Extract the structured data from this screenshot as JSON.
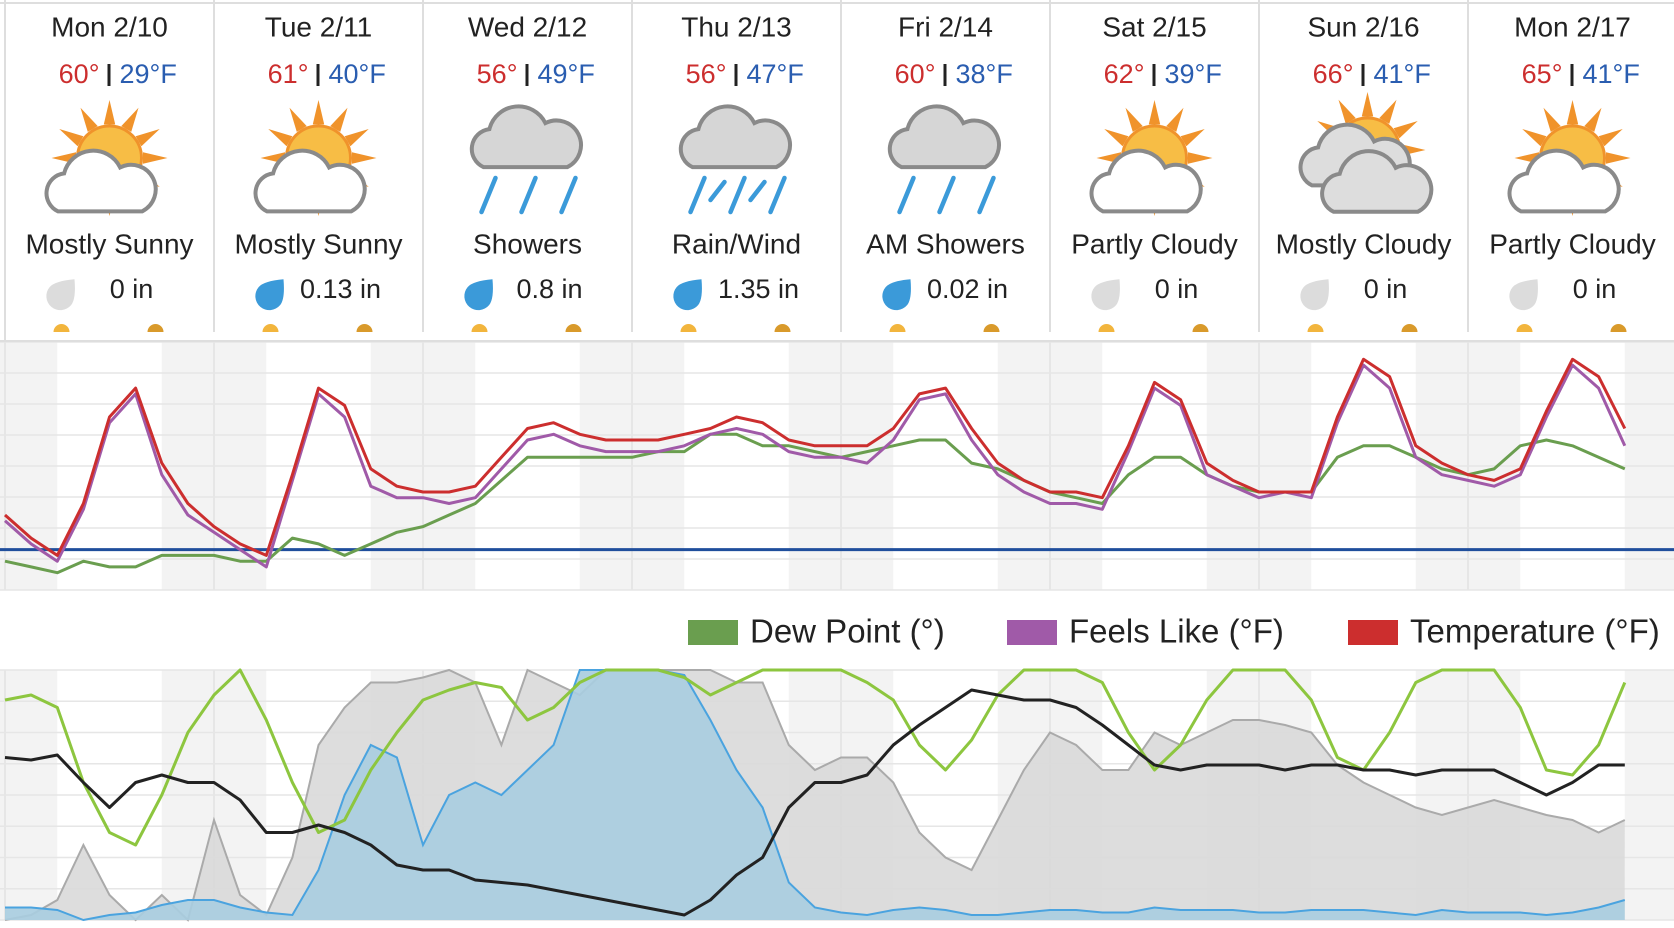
{
  "days": [
    {
      "date": "Mon 2/10",
      "high": "60°",
      "low": "29°F",
      "condition": "Mostly Sunny",
      "precip": "0 in"
    },
    {
      "date": "Tue 2/11",
      "high": "61°",
      "low": "40°F",
      "condition": "Mostly Sunny",
      "precip": "0.13 in"
    },
    {
      "date": "Wed 2/12",
      "high": "56°",
      "low": "49°F",
      "condition": "Showers",
      "precip": "0.8 in"
    },
    {
      "date": "Thu 2/13",
      "high": "56°",
      "low": "47°F",
      "condition": "Rain/Wind",
      "precip": "1.35 in"
    },
    {
      "date": "Fri 2/14",
      "high": "60°",
      "low": "38°F",
      "condition": "AM Showers",
      "precip": "0.02 in"
    },
    {
      "date": "Sat 2/15",
      "high": "62°",
      "low": "39°F",
      "condition": "Partly Cloudy",
      "precip": "0 in"
    },
    {
      "date": "Sun 2/16",
      "high": "66°",
      "low": "41°F",
      "condition": "Mostly Cloudy",
      "precip": "0 in"
    },
    {
      "date": "Mon 2/17",
      "high": "65°",
      "low": "41°F",
      "condition": "Partly Cloudy",
      "precip": "0 in"
    }
  ],
  "chart_data": [
    {
      "type": "line",
      "ylim": [
        25,
        68
      ],
      "reference_line": 32,
      "reference_color": "#1f4e9c",
      "series": [
        {
          "name": "Dew Point (°)",
          "color": "#6a9e4f",
          "values": [
            30,
            29,
            28,
            30,
            29,
            29,
            31,
            31,
            31,
            30,
            30,
            34,
            33,
            31,
            33,
            35,
            36,
            38,
            40,
            44,
            48,
            48,
            48,
            48,
            48,
            49,
            49,
            52,
            52,
            50,
            50,
            49,
            48,
            49,
            50,
            51,
            51,
            47,
            46,
            44,
            42,
            41,
            40,
            45,
            48,
            48,
            45,
            43,
            42,
            42,
            42,
            48,
            50,
            50,
            48,
            46,
            45,
            46,
            50,
            51,
            50,
            48,
            46
          ]
        },
        {
          "name": "Feels Like (°F)",
          "color": "#a05aa8",
          "values": [
            37,
            33,
            30,
            39,
            54,
            59,
            45,
            38,
            35,
            32,
            29,
            44,
            59,
            55,
            43,
            41,
            41,
            40,
            41,
            46,
            51,
            52,
            50,
            49,
            49,
            49,
            50,
            52,
            53,
            52,
            49,
            48,
            48,
            47,
            51,
            58,
            59,
            51,
            45,
            42,
            40,
            40,
            39,
            49,
            60,
            57,
            45,
            43,
            41,
            42,
            41,
            54,
            64,
            60,
            48,
            45,
            44,
            43,
            45,
            55,
            64,
            60,
            50
          ]
        },
        {
          "name": "Temperature (°F)",
          "color": "#cc2e2e",
          "values": [
            38,
            34,
            31,
            40,
            55,
            60,
            47,
            40,
            36,
            33,
            31,
            45,
            60,
            57,
            46,
            43,
            42,
            42,
            43,
            48,
            53,
            54,
            52,
            51,
            51,
            51,
            52,
            53,
            55,
            54,
            51,
            50,
            50,
            50,
            53,
            59,
            60,
            53,
            47,
            44,
            42,
            42,
            41,
            50,
            61,
            58,
            47,
            44,
            42,
            42,
            42,
            55,
            65,
            62,
            50,
            47,
            45,
            44,
            46,
            56,
            65,
            62,
            53
          ]
        }
      ]
    },
    {
      "type": "area",
      "ylim": [
        0,
        100
      ],
      "series": [
        {
          "color": "#aaaaaa",
          "fill": "#d9d9d9",
          "values": [
            0,
            2,
            8,
            30,
            10,
            0,
            10,
            0,
            40,
            10,
            2,
            25,
            70,
            85,
            95,
            95,
            97,
            100,
            95,
            70,
            100,
            95,
            90,
            100,
            100,
            100,
            100,
            100,
            95,
            95,
            70,
            60,
            65,
            65,
            55,
            35,
            25,
            20,
            40,
            60,
            75,
            70,
            60,
            60,
            75,
            70,
            75,
            80,
            80,
            78,
            75,
            62,
            55,
            50,
            45,
            42,
            45,
            48,
            45,
            42,
            40,
            35,
            40
          ]
        },
        {
          "color": "#4aa3df",
          "fill": "#a9cde0",
          "values": [
            5,
            5,
            4,
            0,
            2,
            3,
            6,
            8,
            8,
            5,
            3,
            2,
            20,
            50,
            70,
            65,
            30,
            50,
            55,
            50,
            60,
            70,
            100,
            100,
            100,
            100,
            98,
            80,
            60,
            45,
            15,
            5,
            3,
            2,
            4,
            5,
            4,
            2,
            2,
            3,
            4,
            4,
            3,
            3,
            5,
            4,
            4,
            4,
            3,
            3,
            4,
            4,
            4,
            3,
            2,
            4,
            3,
            3,
            3,
            2,
            3,
            5,
            8
          ]
        },
        {
          "color": "#8dc63f",
          "values": [
            88,
            90,
            85,
            55,
            35,
            30,
            50,
            75,
            90,
            100,
            80,
            55,
            35,
            40,
            60,
            75,
            88,
            92,
            95,
            93,
            80,
            85,
            95,
            100,
            100,
            100,
            97,
            90,
            95,
            100,
            100,
            100,
            100,
            95,
            88,
            70,
            60,
            72,
            90,
            100,
            100,
            100,
            95,
            75,
            60,
            70,
            88,
            100,
            100,
            100,
            88,
            65,
            60,
            75,
            95,
            100,
            100,
            100,
            85,
            60,
            58,
            70,
            95
          ]
        },
        {
          "color": "#222222",
          "values": [
            65,
            64,
            66,
            55,
            45,
            55,
            58,
            55,
            55,
            48,
            35,
            35,
            38,
            35,
            30,
            22,
            20,
            20,
            16,
            15,
            14,
            12,
            10,
            8,
            6,
            4,
            2,
            8,
            18,
            25,
            45,
            55,
            55,
            58,
            70,
            78,
            85,
            92,
            90,
            88,
            88,
            85,
            78,
            70,
            62,
            60,
            62,
            62,
            62,
            60,
            62,
            62,
            60,
            60,
            58,
            60,
            60,
            60,
            55,
            50,
            55,
            62,
            62
          ]
        }
      ]
    }
  ]
}
